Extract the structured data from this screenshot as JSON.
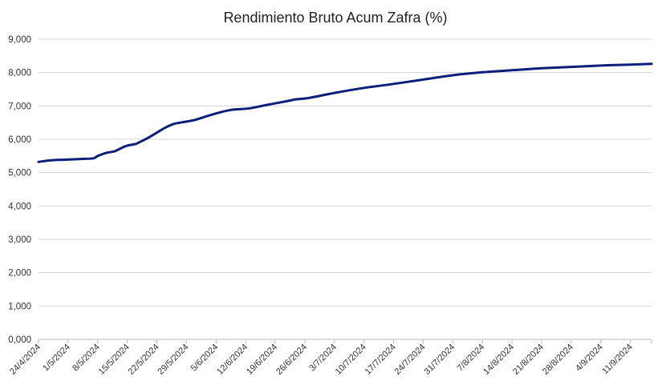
{
  "chart_data": {
    "type": "line",
    "title": "Rendimiento Bruto Acum Zafra (%)",
    "xlabel": "",
    "ylabel": "",
    "ylim": [
      0,
      9
    ],
    "y_ticks": [
      "0,000",
      "1,000",
      "2,000",
      "3,000",
      "4,000",
      "5,000",
      "6,000",
      "7,000",
      "8,000",
      "9,000"
    ],
    "x_range": [
      "24/4/2024",
      "16/9/2024"
    ],
    "x_ticks": [
      "24/4/2024",
      "1/5/2024",
      "8/5/2024",
      "15/5/2024",
      "22/5/2024",
      "29/5/2024",
      "5/6/2024",
      "12/6/2024",
      "19/6/2024",
      "26/6/2024",
      "3/7/2024",
      "10/7/2024",
      "17/7/2024",
      "24/7/2024",
      "31/7/2024",
      "7/8/2024",
      "14/8/2024",
      "21/8/2024",
      "28/8/2024",
      "4/9/2024",
      "11/9/2024"
    ],
    "grid": true,
    "legend": "none",
    "series": [
      {
        "color": "#0b1f7a",
        "points": [
          [
            "24/4/2024",
            5.32
          ],
          [
            "27/4/2024",
            5.37
          ],
          [
            "1/5/2024",
            5.39
          ],
          [
            "4/5/2024",
            5.41
          ],
          [
            "7/5/2024",
            5.43
          ],
          [
            "8/5/2024",
            5.5
          ],
          [
            "10/5/2024",
            5.59
          ],
          [
            "12/5/2024",
            5.64
          ],
          [
            "13/5/2024",
            5.7
          ],
          [
            "14/5/2024",
            5.76
          ],
          [
            "15/5/2024",
            5.81
          ],
          [
            "17/5/2024",
            5.86
          ],
          [
            "18/5/2024",
            5.92
          ],
          [
            "20/5/2024",
            6.05
          ],
          [
            "22/5/2024",
            6.2
          ],
          [
            "24/5/2024",
            6.35
          ],
          [
            "26/5/2024",
            6.46
          ],
          [
            "28/5/2024",
            6.51
          ],
          [
            "31/5/2024",
            6.58
          ],
          [
            "3/6/2024",
            6.7
          ],
          [
            "6/6/2024",
            6.81
          ],
          [
            "8/6/2024",
            6.87
          ],
          [
            "10/6/2024",
            6.9
          ],
          [
            "13/6/2024",
            6.93
          ],
          [
            "17/6/2024",
            7.03
          ],
          [
            "22/6/2024",
            7.15
          ],
          [
            "24/6/2024",
            7.2
          ],
          [
            "27/6/2024",
            7.24
          ],
          [
            "3/7/2024",
            7.39
          ],
          [
            "10/7/2024",
            7.54
          ],
          [
            "17/7/2024",
            7.66
          ],
          [
            "24/7/2024",
            7.79
          ],
          [
            "31/7/2024",
            7.92
          ],
          [
            "7/8/2024",
            8.01
          ],
          [
            "14/8/2024",
            8.07
          ],
          [
            "21/8/2024",
            8.13
          ],
          [
            "28/8/2024",
            8.17
          ],
          [
            "4/9/2024",
            8.21
          ],
          [
            "11/9/2024",
            8.24
          ],
          [
            "16/9/2024",
            8.26
          ]
        ]
      }
    ]
  }
}
